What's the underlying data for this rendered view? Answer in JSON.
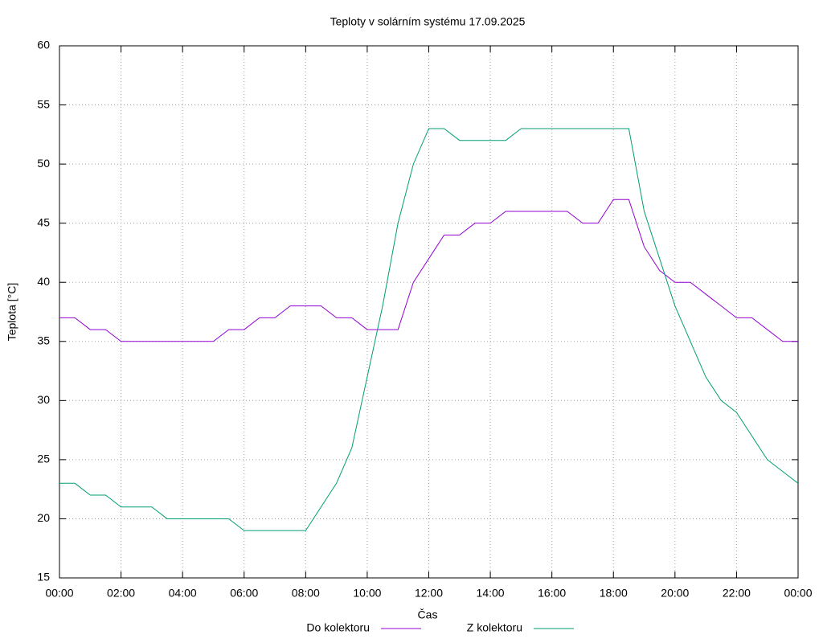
{
  "chart_data": {
    "type": "line",
    "title": "Teploty v solárním systému 17.09.2025",
    "xlabel": "Čas",
    "ylabel": "Teplota [°C]",
    "x": [
      0,
      0.5,
      1,
      1.5,
      2,
      2.5,
      3,
      3.5,
      4,
      4.5,
      5,
      5.5,
      6,
      6.5,
      7,
      7.5,
      8,
      8.5,
      9,
      9.5,
      10,
      10.5,
      11,
      11.5,
      12,
      12.5,
      13,
      13.5,
      14,
      14.5,
      15,
      15.5,
      16,
      16.5,
      17,
      17.5,
      18,
      18.5,
      19,
      19.5,
      20,
      20.5,
      21,
      21.5,
      22,
      22.5,
      23,
      23.5,
      24
    ],
    "series": [
      {
        "name": "Do kolektoru",
        "color": "#9400d3",
        "values": [
          37,
          37,
          36,
          36,
          35,
          35,
          35,
          35,
          35,
          35,
          35,
          36,
          36,
          37,
          37,
          38,
          38,
          38,
          37,
          37,
          36,
          36,
          36,
          40,
          42,
          44,
          44,
          45,
          45,
          46,
          46,
          46,
          46,
          46,
          45,
          45,
          47,
          47,
          43,
          41,
          40,
          40,
          39,
          38,
          37,
          37,
          36,
          35,
          35
        ]
      },
      {
        "name": "Z kolektoru",
        "color": "#009e73",
        "values": [
          23,
          23,
          22,
          22,
          21,
          21,
          21,
          20,
          20,
          20,
          20,
          20,
          19,
          19,
          19,
          19,
          19,
          21,
          23,
          26,
          32,
          38,
          45,
          50,
          53,
          53,
          52,
          52,
          52,
          52,
          53,
          53,
          53,
          53,
          53,
          53,
          53,
          53,
          46,
          42,
          38,
          35,
          32,
          30,
          29,
          27,
          25,
          24,
          23
        ]
      }
    ],
    "xlim": [
      0,
      24
    ],
    "xticks": [
      {
        "value": 0,
        "label": "00:00"
      },
      {
        "value": 2,
        "label": "02:00"
      },
      {
        "value": 4,
        "label": "04:00"
      },
      {
        "value": 6,
        "label": "06:00"
      },
      {
        "value": 8,
        "label": "08:00"
      },
      {
        "value": 10,
        "label": "10:00"
      },
      {
        "value": 12,
        "label": "12:00"
      },
      {
        "value": 14,
        "label": "14:00"
      },
      {
        "value": 16,
        "label": "16:00"
      },
      {
        "value": 18,
        "label": "18:00"
      },
      {
        "value": 20,
        "label": "20:00"
      },
      {
        "value": 22,
        "label": "22:00"
      },
      {
        "value": 24,
        "label": "00:00"
      }
    ],
    "ylim": [
      15,
      60
    ],
    "yticks": [
      15,
      20,
      25,
      30,
      35,
      40,
      45,
      50,
      55,
      60
    ],
    "grid": true,
    "legend": "bottom"
  }
}
